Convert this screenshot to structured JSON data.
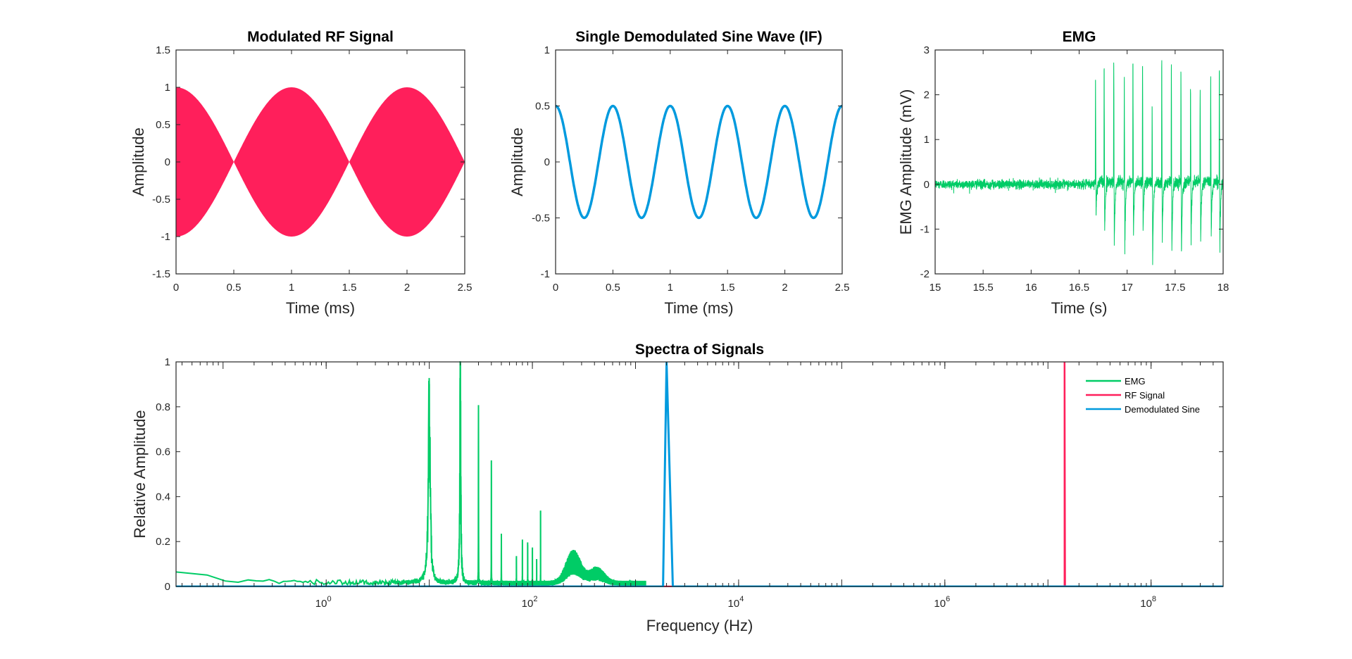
{
  "colors": {
    "emg": "#00CC66",
    "rf": "#FF1F5B",
    "demod": "#009ADE",
    "axis": "#262626"
  },
  "chart_data": [
    {
      "id": "rf",
      "type": "area",
      "title": "Modulated RF Signal",
      "xlabel": "Time (ms)",
      "ylabel": "Amplitude",
      "xlim": [
        0,
        2.5
      ],
      "ylim": [
        -1.5,
        1.5
      ],
      "xticks": [
        0,
        0.5,
        1,
        1.5,
        2,
        2.5
      ],
      "xticklabels": [
        "0",
        "0.5",
        "1",
        "1.5",
        "2",
        "2.5"
      ],
      "yticks": [
        -1.5,
        -1,
        -0.5,
        0,
        0.5,
        1,
        1.5
      ],
      "yticklabels": [
        "-1.5",
        "-1",
        "-0.5",
        "0",
        "0.5",
        "1",
        "1.5"
      ],
      "series": [
        {
          "name": "RF Signal",
          "envelope": "abs(cos)",
          "envelope_freq_khz": 1,
          "amplitude": 1,
          "color_key": "rf"
        }
      ]
    },
    {
      "id": "demod",
      "type": "line",
      "title": "Single Demodulated Sine Wave (IF)",
      "xlabel": "Time (ms)",
      "ylabel": "Amplitude",
      "xlim": [
        0,
        2.5
      ],
      "ylim": [
        -1,
        1
      ],
      "xticks": [
        0,
        0.5,
        1,
        1.5,
        2,
        2.5
      ],
      "xticklabels": [
        "0",
        "0.5",
        "1",
        "1.5",
        "2",
        "2.5"
      ],
      "yticks": [
        -1,
        -0.5,
        0,
        0.5,
        1
      ],
      "yticklabels": [
        "-1",
        "-0.5",
        "0",
        "0.5",
        "1"
      ],
      "series": [
        {
          "name": "Demodulated Sine",
          "function": "cos",
          "freq_khz": 2,
          "amplitude": 0.5,
          "color_key": "demod"
        }
      ]
    },
    {
      "id": "emg",
      "type": "line",
      "title": "EMG",
      "xlabel": "Time (s)",
      "ylabel": "EMG Amplitude (mV)",
      "xlim": [
        15,
        18
      ],
      "ylim": [
        -2,
        3
      ],
      "xticks": [
        15,
        15.5,
        16,
        16.5,
        17,
        17.5,
        18
      ],
      "xticklabels": [
        "15",
        "15.5",
        "16",
        "16.5",
        "17",
        "17.5",
        "18"
      ],
      "yticks": [
        -2,
        -1,
        0,
        1,
        2,
        3
      ],
      "yticklabels": [
        "-2",
        "-1",
        "0",
        "1",
        "2",
        "3"
      ],
      "series": [
        {
          "name": "EMG",
          "color_key": "emg",
          "baseline_noise_mv": 0.05,
          "spike_times_s": [
            16.67,
            16.76,
            16.86,
            16.97,
            17.06,
            17.16,
            17.26,
            17.36,
            17.46,
            17.56,
            17.66,
            17.76,
            17.87,
            17.96
          ],
          "spike_peaks_mv": [
            2.26,
            2.54,
            2.64,
            2.23,
            2.64,
            2.51,
            1.74,
            2.57,
            2.51,
            2.45,
            1.95,
            2.01,
            2.33,
            2.45
          ],
          "spike_troughs_mv": [
            -0.76,
            -1.15,
            -1.48,
            -1.54,
            -1.27,
            -1.11,
            -1.84,
            -1.32,
            -1.62,
            -1.62,
            -1.35,
            -1.38,
            -1.19,
            -1.54
          ]
        }
      ]
    },
    {
      "id": "spectra",
      "type": "line",
      "title": "Spectra of Signals",
      "xlabel": "Frequency (Hz)",
      "ylabel": "Relative Amplitude",
      "xscale": "log",
      "xlim": [
        0.035,
        500000000
      ],
      "ylim": [
        0,
        1
      ],
      "xticks": [
        1,
        100,
        10000,
        1000000,
        100000000
      ],
      "xticklabels": [
        {
          "base": "10",
          "exp": "0"
        },
        {
          "base": "10",
          "exp": "2"
        },
        {
          "base": "10",
          "exp": "4"
        },
        {
          "base": "10",
          "exp": "6"
        },
        {
          "base": "10",
          "exp": "8"
        }
      ],
      "yticks": [
        0,
        0.2,
        0.4,
        0.6,
        0.8,
        1
      ],
      "yticklabels": [
        "0",
        "0.2",
        "0.4",
        "0.6",
        "0.8",
        "1"
      ],
      "legend": {
        "placement": "top-right",
        "entries": [
          "EMG",
          "RF Signal",
          "Demodulated Sine"
        ]
      },
      "series": [
        {
          "name": "EMG",
          "color_key": "emg",
          "max_freq_hz": 1250,
          "peaks": [
            {
              "f": 10,
              "a": 0.89
            },
            {
              "f": 20,
              "a": 1.0
            },
            {
              "f": 30,
              "a": 0.79
            },
            {
              "f": 40,
              "a": 0.55
            },
            {
              "f": 50,
              "a": 0.235
            },
            {
              "f": 70,
              "a": 0.128
            },
            {
              "f": 80,
              "a": 0.19
            },
            {
              "f": 90,
              "a": 0.185
            },
            {
              "f": 100,
              "a": 0.16
            },
            {
              "f": 110,
              "a": 0.117
            },
            {
              "f": 120,
              "a": 0.33
            }
          ],
          "broad_bumps": [
            {
              "f": 250,
              "a": 0.11
            },
            {
              "f": 420,
              "a": 0.05
            }
          ],
          "low_freq_level": 0.05,
          "noise_floor": 0.015
        },
        {
          "name": "RF Signal",
          "color_key": "rf",
          "points": [
            [
              14500000,
              0
            ],
            [
              14500000,
              1
            ]
          ]
        },
        {
          "name": "Demodulated Sine",
          "color_key": "demod",
          "points": [
            [
              1850,
              0
            ],
            [
              2000,
              1
            ],
            [
              2300,
              0
            ]
          ]
        }
      ]
    }
  ]
}
